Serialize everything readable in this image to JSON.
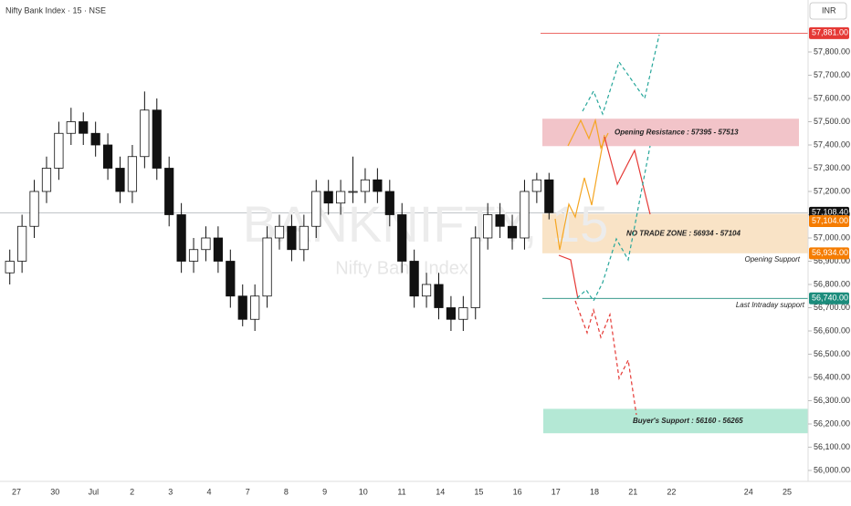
{
  "chart_data": {
    "type": "candlestick",
    "title": "Nifty Bank Index · 15 · NSE",
    "currency": "INR",
    "watermark": "BANKNIFTY, 15",
    "watermark_subtitle": "Nifty Bank Index",
    "categories": [
      "27",
      "30",
      "Jul",
      "2",
      "3",
      "4",
      "7",
      "8",
      "9",
      "10",
      "11",
      "14",
      "15",
      "16",
      "17",
      "18",
      "21",
      "22",
      null,
      "24",
      "25"
    ],
    "open": [
      56850,
      56900,
      57050,
      57200,
      57300,
      57450,
      57500,
      57450,
      57400,
      57300,
      57200,
      57350,
      57550,
      57300,
      57100,
      56900,
      56950,
      57000,
      56900,
      56750,
      56650,
      56750,
      57000,
      57050,
      56950,
      57050,
      57200,
      57150,
      57200,
      57200,
      57250,
      57200,
      57100,
      56900,
      56750,
      56800,
      56700,
      56650,
      56700,
      57000,
      57100,
      57050,
      57000,
      57200,
      57250
    ],
    "high": [
      56950,
      57100,
      57250,
      57350,
      57500,
      57560,
      57540,
      57500,
      57450,
      57350,
      57400,
      57630,
      57600,
      57350,
      57150,
      57000,
      57050,
      57050,
      56950,
      56800,
      56800,
      57050,
      57100,
      57100,
      57100,
      57250,
      57250,
      57250,
      57350,
      57300,
      57300,
      57250,
      57150,
      56950,
      56850,
      56850,
      56750,
      56750,
      57050,
      57150,
      57150,
      57100,
      57250,
      57280,
      57280
    ],
    "low": [
      56800,
      56850,
      57000,
      57150,
      57250,
      57400,
      57400,
      57350,
      57250,
      57150,
      57150,
      57300,
      57250,
      57050,
      56850,
      56850,
      56900,
      56850,
      56700,
      56620,
      56600,
      56700,
      56950,
      56900,
      56900,
      57000,
      57100,
      57100,
      57150,
      57150,
      57150,
      57050,
      56850,
      56700,
      56700,
      56650,
      56600,
      56600,
      56650,
      56950,
      57000,
      56950,
      56950,
      57150,
      57080
    ],
    "close": [
      56900,
      57050,
      57200,
      57300,
      57450,
      57500,
      57450,
      57400,
      57300,
      57200,
      57350,
      57550,
      57300,
      57100,
      56900,
      56950,
      57000,
      56900,
      56750,
      56650,
      56750,
      57000,
      57050,
      56950,
      57050,
      57200,
      57150,
      57200,
      57200,
      57250,
      57200,
      57100,
      56900,
      56750,
      56800,
      56700,
      56650,
      56700,
      57000,
      57100,
      57050,
      57000,
      57200,
      57250,
      57108.4
    ],
    "ylim": [
      55970,
      58000
    ],
    "yticks": [
      {
        "value": 56000,
        "label": "56,000.00"
      },
      {
        "value": 56100,
        "label": "56,100.00"
      },
      {
        "value": 56200,
        "label": "56,200.00"
      },
      {
        "value": 56300,
        "label": "56,300.00"
      },
      {
        "value": 56400,
        "label": "56,400.00"
      },
      {
        "value": 56500,
        "label": "56,500.00"
      },
      {
        "value": 56600,
        "label": "56,600.00"
      },
      {
        "value": 56700,
        "label": "56,700.00"
      },
      {
        "value": 56800,
        "label": "56,800.00"
      },
      {
        "value": 56900,
        "label": "56,900.00"
      },
      {
        "value": 57000,
        "label": "57,000.00"
      },
      {
        "value": 57100,
        "label": "57,100.00"
      },
      {
        "value": 57200,
        "label": "57,200.00"
      },
      {
        "value": 57300,
        "label": "57,300.00"
      },
      {
        "value": 57400,
        "label": "57,400.00"
      },
      {
        "value": 57500,
        "label": "57,500.00"
      },
      {
        "value": 57600,
        "label": "57,600.00"
      },
      {
        "value": 57700,
        "label": "57,700.00"
      },
      {
        "value": 57800,
        "label": "57,800.00"
      }
    ],
    "levels": [
      {
        "value": 57881,
        "label": "57,881.00",
        "color": "#e53935"
      },
      {
        "value": 57108.4,
        "label": "57,108.40",
        "color": "#111111"
      },
      {
        "value": 57104,
        "label": "57,104.00",
        "color": "#f57c00"
      },
      {
        "value": 56934,
        "label": "56,934.00",
        "color": "#f57c00"
      },
      {
        "value": 56740,
        "label": "56,740.00",
        "color": "#1b8c7c"
      }
    ],
    "zones": [
      {
        "label": "Opening Resistance : 57395 - 57513",
        "low": 57395,
        "high": 57513,
        "color": "#f2c4c9"
      },
      {
        "label": "NO TRADE ZONE : 56934 - 57104",
        "low": 56934,
        "high": 57104,
        "color": "#f9e3c6"
      },
      {
        "label": "Buyer's Support :  56160 - 56265",
        "low": 56160,
        "high": 56265,
        "color": "#b4e8d5"
      }
    ],
    "annotations": [
      "Opening Support",
      "Last Intraday support"
    ]
  }
}
